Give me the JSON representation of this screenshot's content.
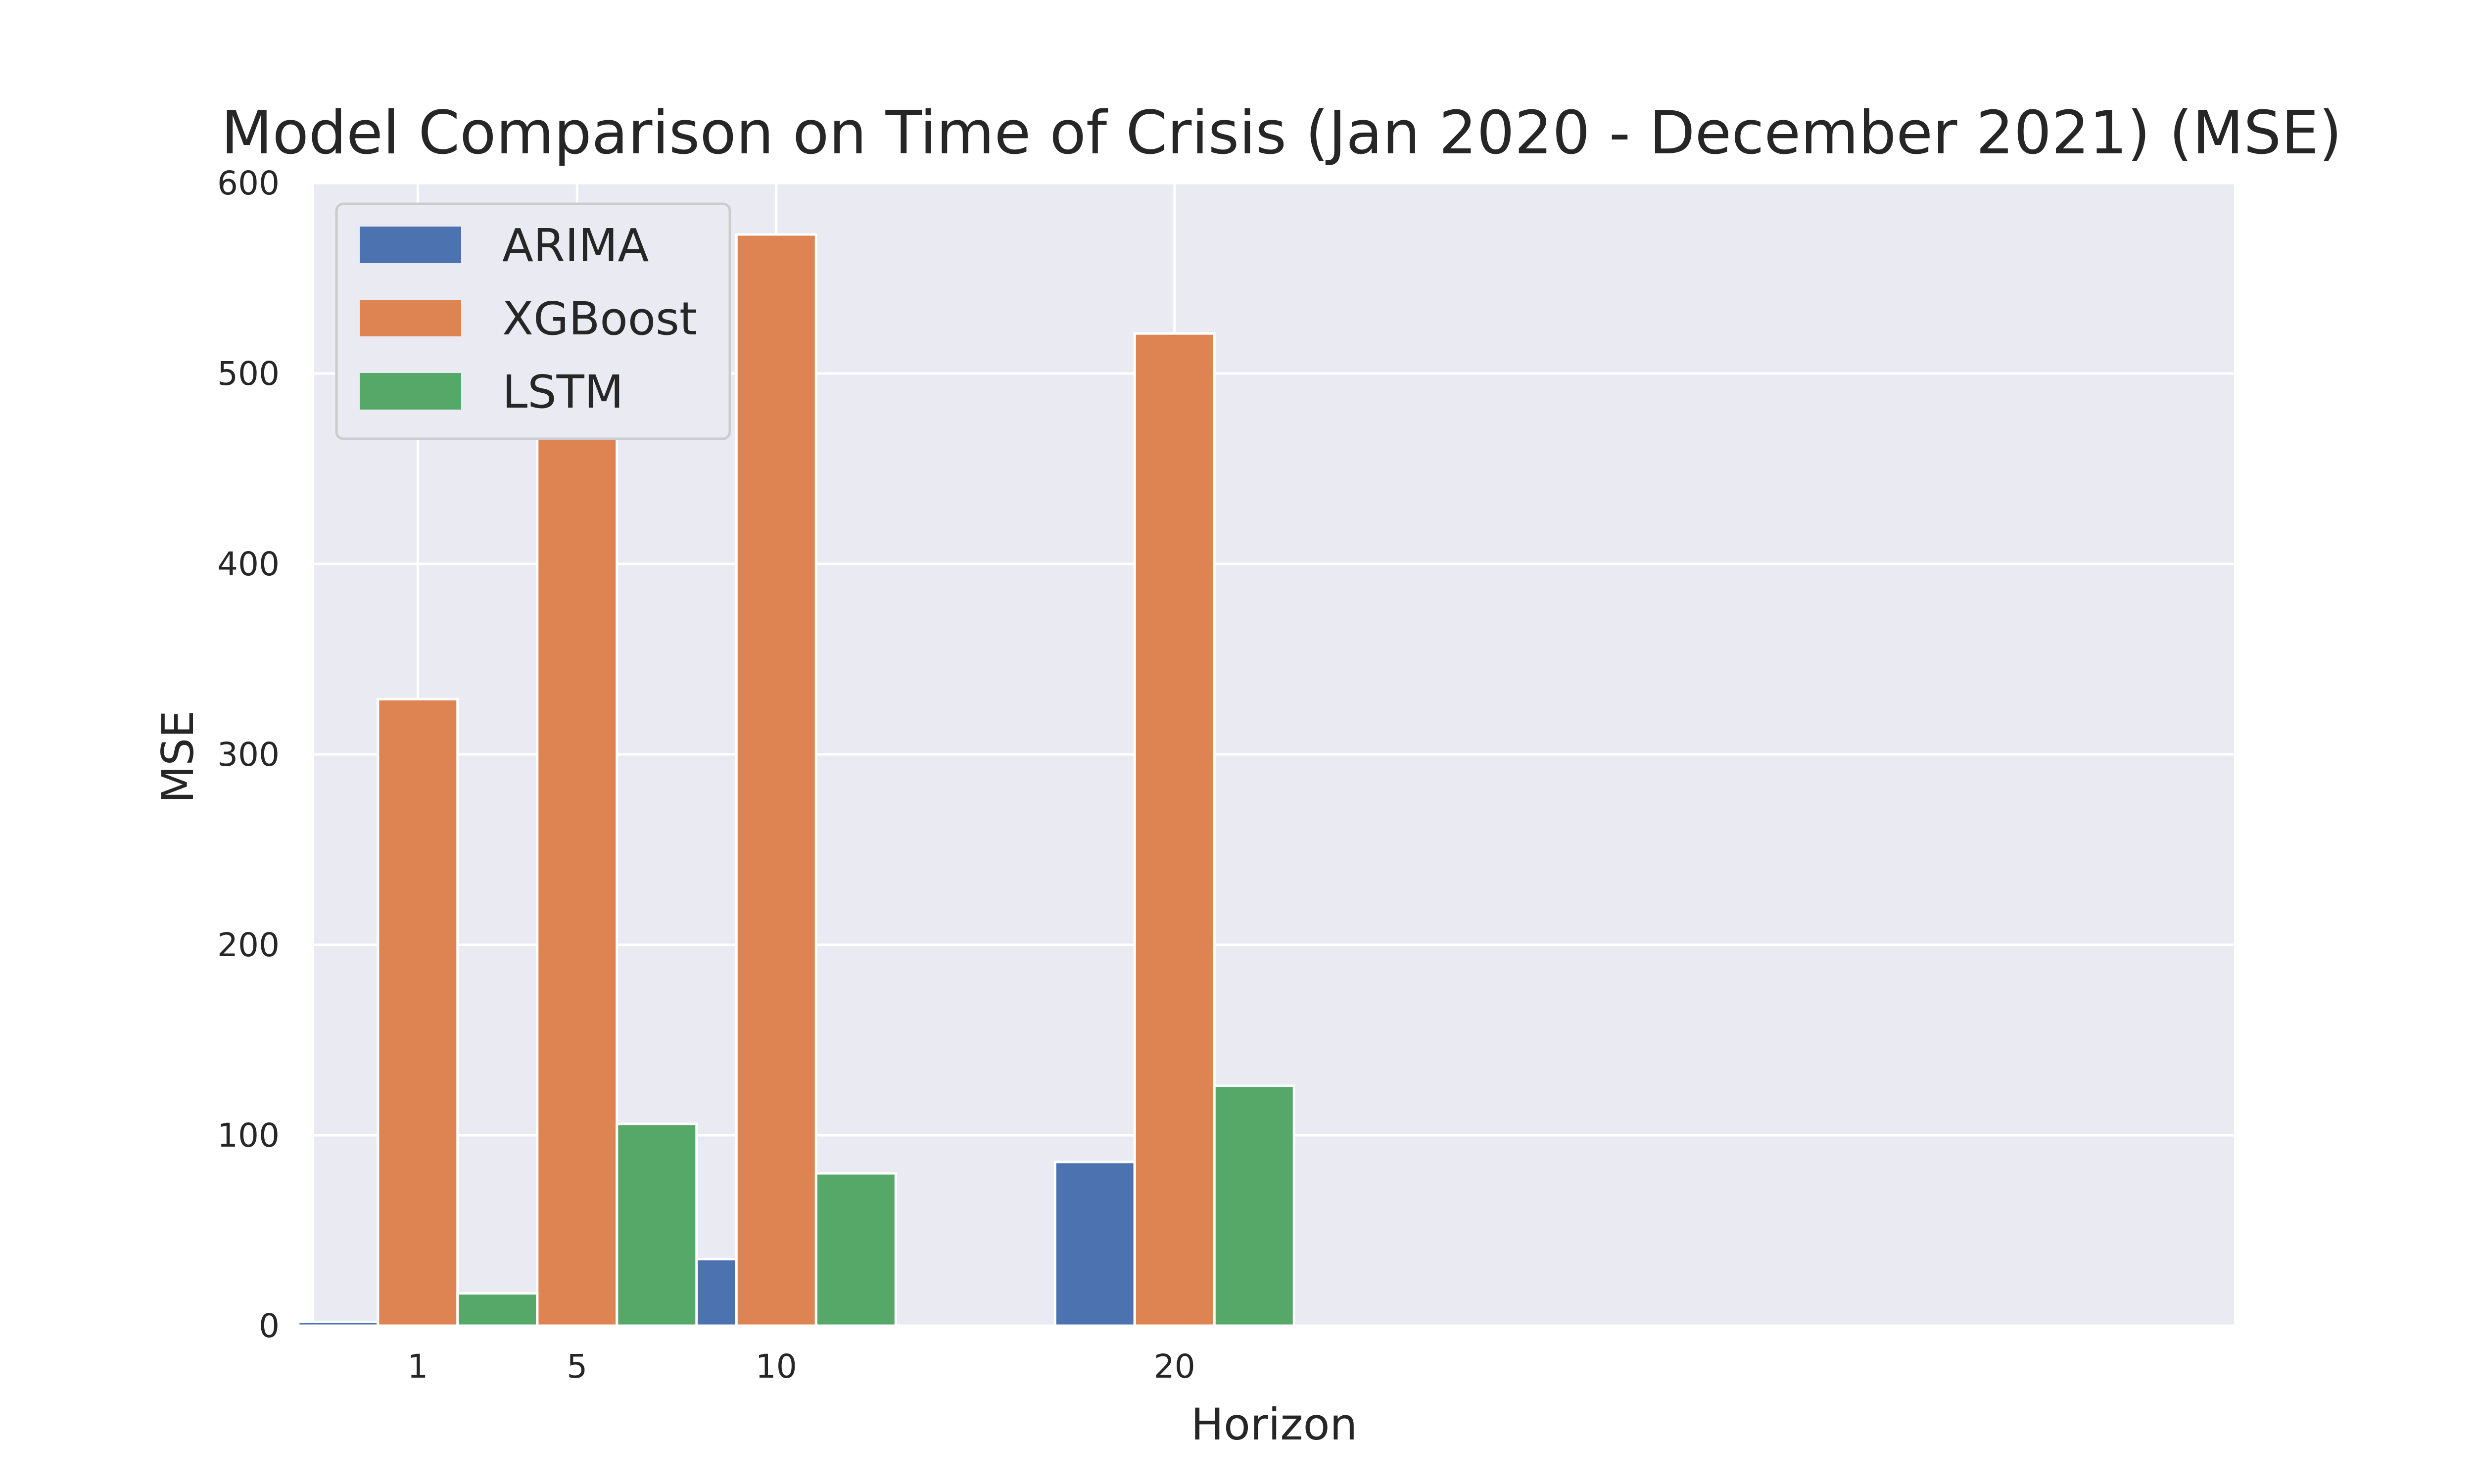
{
  "chart_data": {
    "type": "bar",
    "title": "Model Comparison on Time of Crisis (Jan 2020 - December 2021) (MSE)",
    "xlabel": "Horizon",
    "ylabel": "MSE",
    "x": [
      1,
      5,
      10,
      20
    ],
    "x_tick_labels": [
      "1",
      "5",
      "10",
      "20"
    ],
    "xlim": [
      -1.6,
      46.6
    ],
    "ylim": [
      0,
      600
    ],
    "y_ticks": [
      0,
      100,
      200,
      300,
      400,
      500,
      600
    ],
    "y_tick_labels": [
      "0",
      "100",
      "200",
      "300",
      "400",
      "500",
      "600"
    ],
    "grid": true,
    "legend_position": "top-left",
    "series": [
      {
        "name": "ARIMA",
        "color": "#4c72b0",
        "values": [
          2,
          14,
          35,
          86
        ]
      },
      {
        "name": "XGBoost",
        "color": "#dd8452",
        "values": [
          329,
          467,
          573,
          521
        ]
      },
      {
        "name": "LSTM",
        "color": "#55a868",
        "values": [
          17,
          106,
          80,
          126
        ]
      }
    ],
    "colors": {
      "plot_background": "#eaeaf2",
      "grid": "#ffffff",
      "text": "#262626"
    }
  }
}
